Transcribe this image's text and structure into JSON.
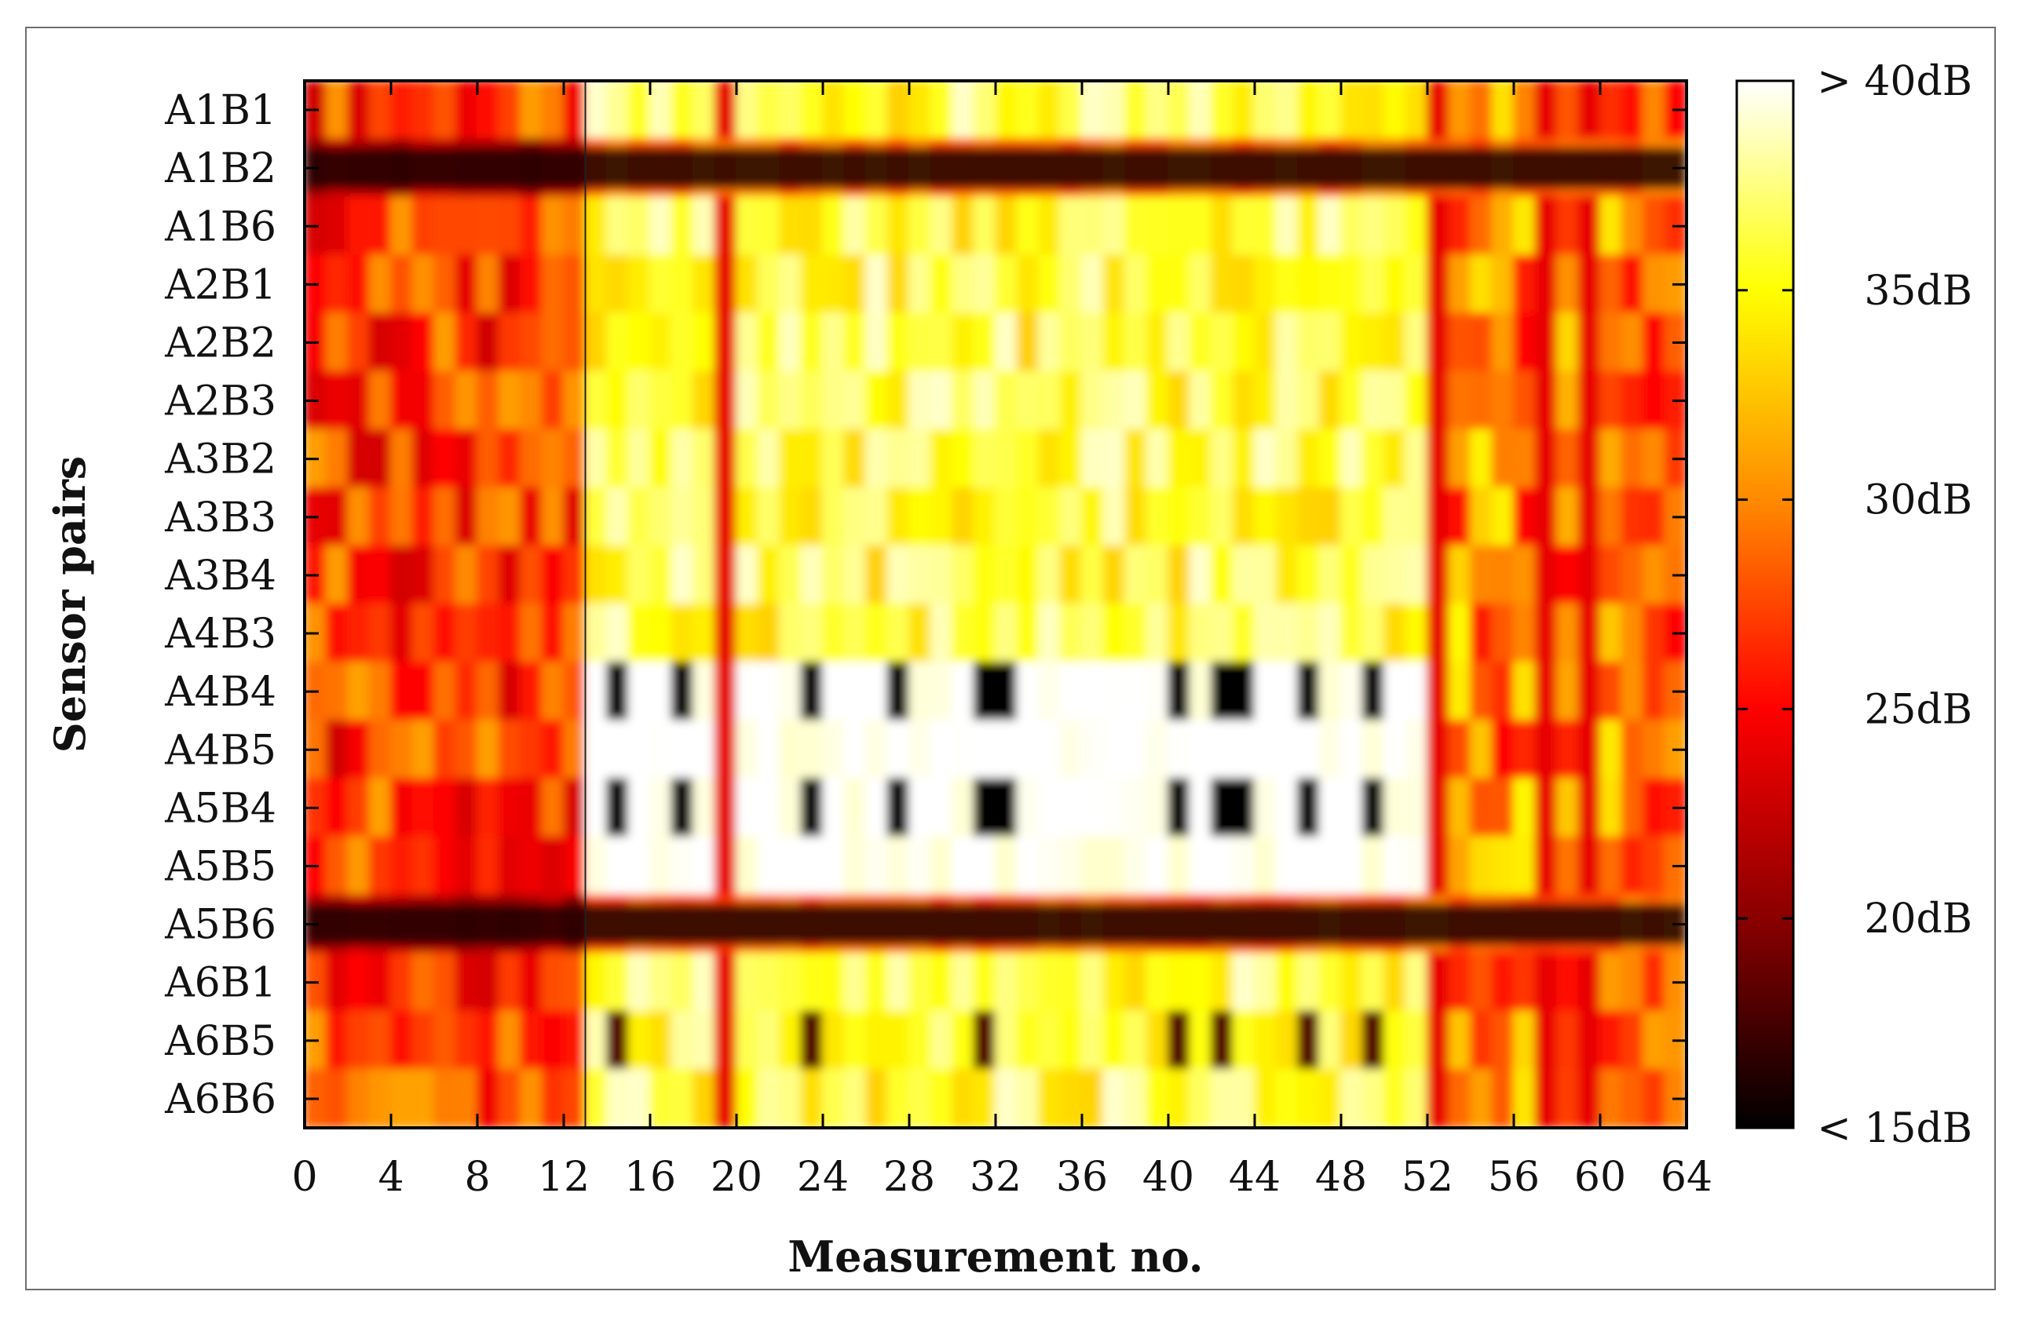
{
  "chart_data": {
    "type": "heatmap",
    "xlabel": "Measurement no.",
    "ylabel": "Sensor pairs",
    "xlim": [
      0,
      64
    ],
    "x_ticks": [
      0,
      4,
      8,
      12,
      16,
      20,
      24,
      28,
      32,
      36,
      40,
      44,
      48,
      52,
      56,
      60,
      64
    ],
    "rows": [
      "A1B1",
      "A1B2",
      "A1B6",
      "A2B1",
      "A2B2",
      "A2B3",
      "A3B2",
      "A3B3",
      "A3B4",
      "A4B3",
      "A4B4",
      "A4B5",
      "A5B4",
      "A5B5",
      "A5B6",
      "A6B1",
      "A6B5",
      "A6B6"
    ],
    "marker_line_x": 13,
    "colorbar": {
      "min": 15,
      "max": 40,
      "unit": "dB",
      "tick_values": [
        15,
        20,
        25,
        30,
        35,
        40
      ],
      "tick_labels": [
        "< 15dB",
        "20dB",
        "25dB",
        "30dB",
        "35dB",
        "> 40dB"
      ],
      "colors": [
        {
          "v": 15,
          "c": "#000000"
        },
        {
          "v": 20,
          "c": "#8a0000"
        },
        {
          "v": 25,
          "c": "#ff0000"
        },
        {
          "v": 30,
          "c": "#ff8a00"
        },
        {
          "v": 35,
          "c": "#ffff00"
        },
        {
          "v": 40,
          "c": "#ffffff"
        }
      ]
    },
    "value_summary": {
      "block_0_12": 27,
      "block_13_51": 36,
      "block_52_64": 30,
      "row_A1B2_A1B6_boundary": 16,
      "row_A5B6_A6B1_boundary": 16,
      "A4B4_A5B4_dark_spots_x": [
        14,
        17,
        23,
        27,
        31,
        32,
        40,
        42,
        43,
        46,
        49
      ]
    }
  }
}
